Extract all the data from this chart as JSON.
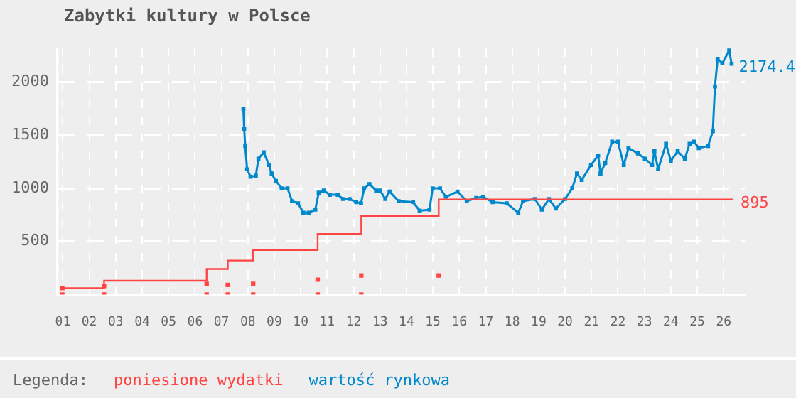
{
  "chart_data": {
    "type": "line",
    "title": "Zabytki kultury w Polsce",
    "legend_title": "Legenda:",
    "legend": "bottom",
    "grid": true,
    "xlim": [
      0.8,
      26.8
    ],
    "xticks": [
      {
        "value": 1,
        "label": "01"
      },
      {
        "value": 2,
        "label": "02"
      },
      {
        "value": 3,
        "label": "03"
      },
      {
        "value": 4,
        "label": "04"
      },
      {
        "value": 5,
        "label": "05"
      },
      {
        "value": 6,
        "label": "06"
      },
      {
        "value": 7,
        "label": "07"
      },
      {
        "value": 8,
        "label": "08"
      },
      {
        "value": 9,
        "label": "09"
      },
      {
        "value": 10,
        "label": "10"
      },
      {
        "value": 11,
        "label": "11"
      },
      {
        "value": 12,
        "label": "12"
      },
      {
        "value": 13,
        "label": "13"
      },
      {
        "value": 14,
        "label": "14"
      },
      {
        "value": 15,
        "label": "15"
      },
      {
        "value": 16,
        "label": "16"
      },
      {
        "value": 17,
        "label": "17"
      },
      {
        "value": 18,
        "label": "18"
      },
      {
        "value": 19,
        "label": "19"
      },
      {
        "value": 20,
        "label": "20"
      },
      {
        "value": 21,
        "label": "21"
      },
      {
        "value": 22,
        "label": "22"
      },
      {
        "value": 23,
        "label": "23"
      },
      {
        "value": 24,
        "label": "24"
      },
      {
        "value": 25,
        "label": "25"
      },
      {
        "value": 26,
        "label": "26"
      }
    ],
    "ylim": [
      0,
      2320
    ],
    "yticks": [
      500,
      1000,
      1500,
      2000
    ],
    "series": [
      {
        "name": "poniesione wydatki",
        "type": "step",
        "color": "#ff4444",
        "x": [
          0.98,
          2.56,
          6.44,
          7.24,
          8.2,
          10.64,
          12.29,
          15.22,
          26.37
        ],
        "marker": "none",
        "values": [
          60,
          130,
          240,
          320,
          420,
          570,
          740,
          895,
          895
        ],
        "value_labels": [
          null,
          null,
          null,
          null,
          null,
          null,
          null,
          null,
          "895"
        ]
      },
      {
        "type": "scatter",
        "color": "#ff4444",
        "x": [
          0.98,
          0.98,
          2.56,
          2.56,
          6.44,
          6.44,
          7.24,
          7.24,
          8.2,
          8.2,
          10.64,
          10.64,
          12.29,
          12.29,
          15.22
        ],
        "marker": "square",
        "values": [
          60,
          0,
          80,
          0,
          100,
          0,
          90,
          0,
          100,
          0,
          140,
          0,
          180,
          0,
          180
        ]
      },
      {
        "name": "wartość rynkowa",
        "marker": "square",
        "color": "#0088cc",
        "x": [
          7.83,
          7.86,
          7.9,
          7.97,
          8.1,
          8.3,
          8.4,
          8.6,
          8.8,
          8.9,
          9.06,
          9.28,
          9.5,
          9.67,
          9.9,
          10.1,
          10.3,
          10.55,
          10.68,
          10.87,
          11.1,
          11.4,
          11.6,
          11.85,
          12.1,
          12.28,
          12.4,
          12.6,
          12.85,
          13.0,
          13.2,
          13.36,
          13.7,
          14.25,
          14.5,
          14.87,
          14.99,
          15.27,
          15.49,
          15.93,
          16.28,
          16.64,
          16.9,
          17.26,
          17.79,
          18.23,
          18.41,
          18.86,
          19.12,
          19.39,
          19.65,
          20.0,
          20.27,
          20.45,
          20.63,
          20.98,
          21.25,
          21.34,
          21.52,
          21.78,
          22.0,
          22.22,
          22.4,
          22.76,
          23.02,
          23.29,
          23.38,
          23.52,
          23.82,
          24.0,
          24.26,
          24.53,
          24.71,
          24.88,
          25.06,
          25.41,
          25.59,
          25.67,
          25.77,
          25.95,
          26.21,
          26.3
        ],
        "values": [
          1750,
          1560,
          1400,
          1180,
          1110,
          1120,
          1280,
          1340,
          1220,
          1140,
          1070,
          1000,
          1000,
          880,
          860,
          770,
          770,
          800,
          960,
          980,
          940,
          940,
          900,
          900,
          870,
          860,
          1000,
          1040,
          980,
          980,
          900,
          970,
          880,
          870,
          790,
          800,
          1000,
          1000,
          920,
          970,
          880,
          910,
          920,
          870,
          860,
          770,
          880,
          900,
          800,
          900,
          810,
          900,
          1000,
          1140,
          1080,
          1220,
          1310,
          1140,
          1240,
          1440,
          1440,
          1220,
          1380,
          1330,
          1280,
          1220,
          1350,
          1180,
          1420,
          1260,
          1350,
          1280,
          1420,
          1440,
          1380,
          1400,
          1540,
          1960,
          2220,
          2180,
          2300,
          2174.4
        ],
        "value_labels": [
          null,
          null,
          null,
          null,
          null,
          null,
          null,
          null,
          null,
          null,
          null,
          null,
          null,
          null,
          null,
          null,
          null,
          null,
          null,
          null,
          null,
          null,
          null,
          null,
          null,
          null,
          null,
          null,
          null,
          null,
          null,
          null,
          null,
          null,
          null,
          null,
          null,
          null,
          null,
          null,
          null,
          null,
          null,
          null,
          null,
          null,
          null,
          null,
          null,
          null,
          null,
          null,
          null,
          null,
          null,
          null,
          null,
          null,
          null,
          null,
          null,
          null,
          null,
          null,
          null,
          null,
          null,
          null,
          null,
          null,
          null,
          null,
          null,
          null,
          null,
          null,
          null,
          null,
          null,
          null,
          null,
          "2174.4"
        ]
      }
    ]
  }
}
